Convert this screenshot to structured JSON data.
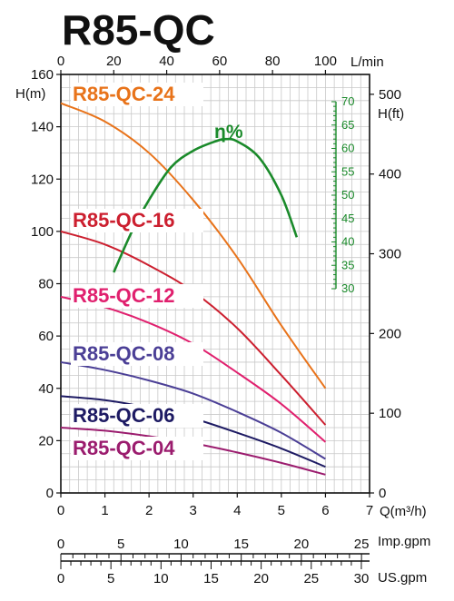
{
  "chart_data": {
    "type": "line",
    "title": "R85-QC",
    "x_primary": {
      "unit_label": "Q(m³/h)",
      "ticks": [
        "0",
        "1",
        "2",
        "3",
        "4",
        "5",
        "6",
        "7"
      ],
      "range": [
        0,
        7
      ]
    },
    "x_top": {
      "unit_label": "L/min",
      "ticks": [
        "0",
        "20",
        "40",
        "60",
        "80",
        "100"
      ],
      "range": [
        0,
        116.67
      ]
    },
    "x_imp": {
      "unit_label": "Imp.gpm",
      "ticks": [
        "0",
        "5",
        "10",
        "15",
        "20",
        "25"
      ],
      "range": [
        0,
        25.67
      ]
    },
    "x_us": {
      "unit_label": "US.gpm",
      "ticks": [
        "0",
        "5",
        "10",
        "15",
        "20",
        "25",
        "30"
      ],
      "range": [
        0,
        30.82
      ]
    },
    "y_left": {
      "unit_label": "H(m)",
      "ticks": [
        "0",
        "20",
        "40",
        "60",
        "80",
        "100",
        "120",
        "140",
        "160"
      ],
      "range": [
        0,
        160
      ]
    },
    "y_right": {
      "unit_label": "H(ft)",
      "ticks": [
        "0",
        "100",
        "200",
        "300",
        "400",
        "500"
      ],
      "range": [
        0,
        524.9
      ]
    },
    "y_eff": {
      "unit_label": "",
      "ticks": [
        "30",
        "35",
        "40",
        "45",
        "50",
        "55",
        "60",
        "65",
        "70"
      ],
      "range": [
        30,
        70
      ]
    },
    "grid": true,
    "series": [
      {
        "name": "R85-QC-24",
        "color": "#e8731a",
        "x": [
          0,
          1,
          2,
          3,
          4,
          5,
          6
        ],
        "y": [
          149,
          142,
          130,
          112,
          90,
          64,
          40
        ]
      },
      {
        "name": "R85-QC-16",
        "color": "#cc1f2f",
        "x": [
          0,
          1,
          2,
          3,
          4,
          5,
          6
        ],
        "y": [
          100,
          95,
          87,
          77,
          63,
          45,
          26
        ]
      },
      {
        "name": "R85-QC-12",
        "color": "#e0206e",
        "x": [
          0,
          1,
          2,
          3,
          4,
          5,
          6
        ],
        "y": [
          75,
          71,
          65,
          57,
          46,
          34,
          19.5
        ]
      },
      {
        "name": "R85-QC-08",
        "color": "#4b3f96",
        "x": [
          0,
          1,
          2,
          3,
          4,
          5,
          6
        ],
        "y": [
          50,
          47,
          43,
          38,
          31,
          23,
          13
        ]
      },
      {
        "name": "R85-QC-06",
        "color": "#1d1a63",
        "x": [
          0,
          1,
          2,
          3,
          4,
          5,
          6
        ],
        "y": [
          37,
          35.5,
          32.5,
          28.5,
          23,
          17,
          10
        ]
      },
      {
        "name": "R85-QC-04",
        "color": "#9b1c6e",
        "x": [
          0,
          1,
          2,
          3,
          4,
          5,
          6
        ],
        "y": [
          25,
          23.8,
          21.7,
          19,
          15.5,
          11.5,
          7
        ]
      }
    ],
    "efficiency": {
      "name": "η%",
      "color": "#1a8a2a",
      "x": [
        1.2,
        1.6,
        2.0,
        2.5,
        3.0,
        3.5,
        3.75,
        4.0,
        4.5,
        5.0,
        5.35
      ],
      "y": [
        33.5,
        42,
        49,
        56,
        59.5,
        61.5,
        62,
        61.5,
        58,
        50,
        41
      ]
    }
  }
}
